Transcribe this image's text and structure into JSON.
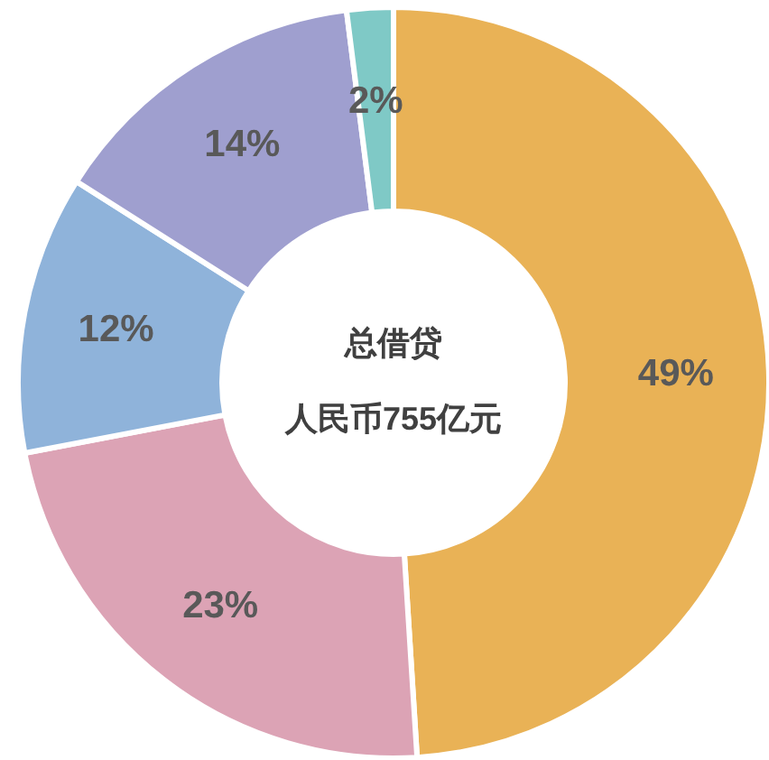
{
  "chart_data": {
    "type": "donut",
    "title": "总借贷",
    "subtitle": "人民币755亿元",
    "categories": [
      null,
      null,
      null,
      null,
      null
    ],
    "values": [
      49,
      23,
      12,
      14,
      2
    ],
    "colors": [
      "#e9b256",
      "#dca3b5",
      "#8fb3da",
      "#9f9fcf",
      "#7fc9c6"
    ],
    "value_labels": [
      "49%",
      "23%",
      "12%",
      "14%",
      "2%"
    ]
  }
}
